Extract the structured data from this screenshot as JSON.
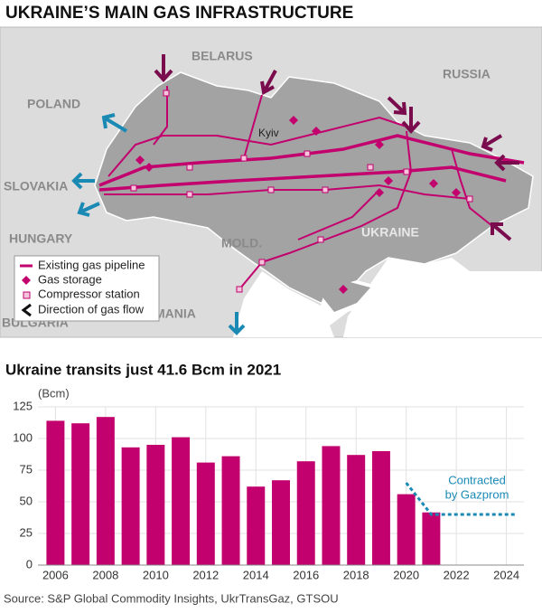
{
  "title": "UKRAINE’S MAIN GAS INFRASTRUCTURE",
  "map": {
    "labels": [
      "BELARUS",
      "POLAND",
      "RUSSIA",
      "Kyiv",
      "SLOVAKIA",
      "HUNGARY",
      "UKRAINE",
      "MOLD.",
      "ROMANIA",
      "BULGARIA"
    ],
    "legend": [
      "Existing gas pipeline",
      "Gas storage",
      "Compressor station",
      "Direction of gas flow"
    ]
  },
  "chart_data": {
    "type": "bar",
    "title": "Ukraine transits just 41.6 Bcm in 2021",
    "y_label": "(Bcm)",
    "x": [
      2006,
      2007,
      2008,
      2009,
      2010,
      2011,
      2012,
      2013,
      2014,
      2015,
      2016,
      2017,
      2018,
      2019,
      2020,
      2021
    ],
    "values": [
      114,
      112,
      117,
      93,
      95,
      101,
      81,
      86,
      62,
      67,
      82,
      94,
      87,
      90,
      56,
      41.6
    ],
    "color": "#c2006e",
    "xlim": [
      2005.3,
      2024.7
    ],
    "xticks": [
      2006,
      2008,
      2010,
      2012,
      2014,
      2016,
      2018,
      2020,
      2022,
      2024
    ],
    "ylim": [
      0,
      125
    ],
    "yticks": [
      0,
      25,
      50,
      75,
      100,
      125
    ],
    "grid": true,
    "contracted": {
      "label_lines": [
        "Contracted",
        "by Gazprom"
      ],
      "x": [
        2020,
        2021,
        2024.4
      ],
      "values": [
        65,
        40,
        40
      ],
      "color": "#1a8ab5"
    }
  },
  "source": "Source: S&P Global Commodity Insights, UkrTransGaz, GTSOU"
}
